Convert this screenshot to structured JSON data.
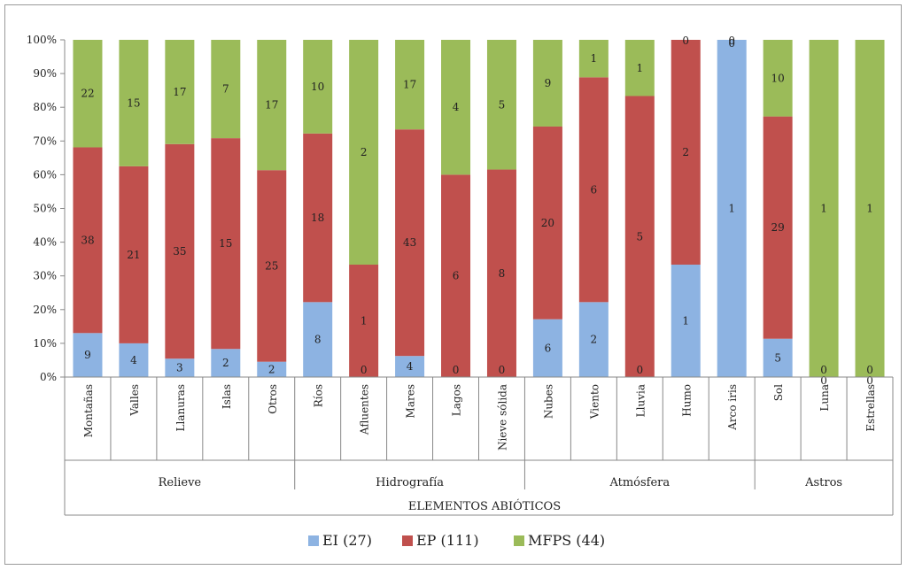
{
  "chart_data": {
    "type": "bar",
    "stacked": "percent",
    "categories": [
      "Montañas",
      "Valles",
      "Llanuras",
      "Islas",
      "Otros",
      "Ríos",
      "Afluentes",
      "Mares",
      "Lagos",
      "Nieve sólida",
      "Nubes",
      "Viento",
      "Lluvia",
      "Humo",
      "Arco iris",
      "Sol",
      "Luna",
      "Estrellas"
    ],
    "groups": [
      {
        "name": "Relieve",
        "count": 5
      },
      {
        "name": "Hidrografía",
        "count": 5
      },
      {
        "name": "Atmósfera",
        "count": 5
      },
      {
        "name": "Astros",
        "count": 3
      }
    ],
    "series": [
      {
        "name": "EI (27)",
        "color": "#8db3e2",
        "values": [
          9,
          4,
          3,
          2,
          2,
          8,
          0,
          4,
          0,
          0,
          6,
          2,
          0,
          1,
          1,
          5,
          0,
          0
        ]
      },
      {
        "name": "EP (111)",
        "color": "#c0504d",
        "values": [
          38,
          21,
          35,
          15,
          25,
          18,
          1,
          43,
          6,
          8,
          20,
          6,
          5,
          2,
          0,
          29,
          0,
          0
        ]
      },
      {
        "name": "MFPS (44)",
        "color": "#9bbb59",
        "values": [
          22,
          15,
          17,
          7,
          17,
          10,
          2,
          17,
          4,
          5,
          9,
          1,
          1,
          0,
          0,
          10,
          1,
          1
        ]
      }
    ],
    "xlabel": "ELEMENTOS ABIÓTICOS",
    "ylabel": "",
    "y_ticks": [
      "0%",
      "10%",
      "20%",
      "30%",
      "40%",
      "50%",
      "60%",
      "70%",
      "80%",
      "90%",
      "100%"
    ],
    "ylim": [
      0,
      100
    ],
    "grid": false,
    "legend_position": "bottom"
  }
}
